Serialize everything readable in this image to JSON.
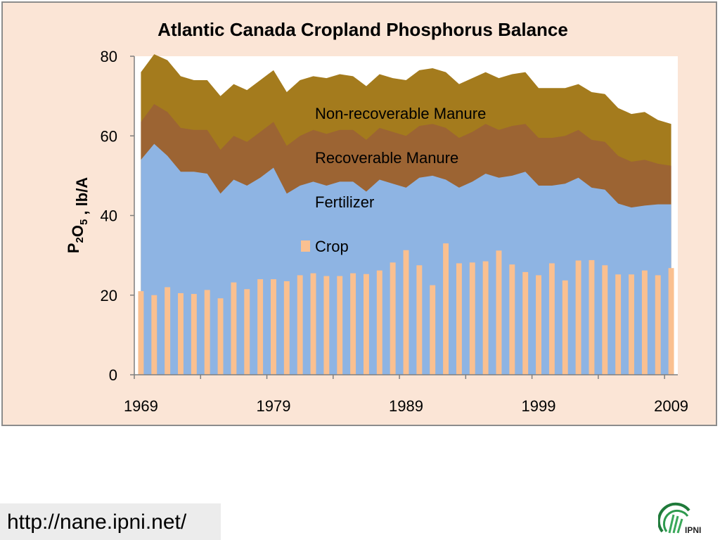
{
  "chart_data": {
    "type": "area",
    "title": "Atlantic Canada Cropland Phosphorus Balance",
    "ylabel": "P2O5 , lb/A",
    "ylim": [
      0,
      80
    ],
    "yticks": [
      0,
      20,
      40,
      60,
      80
    ],
    "xlim": [
      1969,
      2010
    ],
    "xticks": [
      1969,
      1979,
      1989,
      1999,
      2009
    ],
    "x": [
      1969,
      1970,
      1971,
      1972,
      1973,
      1974,
      1975,
      1976,
      1977,
      1978,
      1979,
      1980,
      1981,
      1982,
      1983,
      1984,
      1985,
      1986,
      1987,
      1988,
      1989,
      1990,
      1991,
      1992,
      1993,
      1994,
      1995,
      1996,
      1997,
      1998,
      1999,
      2000,
      2001,
      2002,
      2003,
      2004,
      2005,
      2006,
      2007,
      2008,
      2009
    ],
    "stacked_totals": [
      {
        "name": "Fertilizer",
        "color": "#8eb4e3",
        "values": [
          54,
          58,
          55,
          51,
          51,
          50.5,
          45.5,
          49,
          47.5,
          49.5,
          52,
          45.5,
          47.5,
          48.5,
          47.5,
          48.5,
          48.5,
          46,
          49,
          48,
          47,
          49.5,
          50,
          49,
          47,
          48.5,
          50.5,
          49.5,
          50,
          51,
          47.5,
          47.5,
          48,
          49.5,
          47,
          46.5,
          43,
          42,
          42.5,
          42.8,
          42.8
        ]
      },
      {
        "name": "Recoverable Manure",
        "color": "#9c6433",
        "values": [
          63.5,
          68,
          66,
          62,
          61.5,
          61.5,
          56.5,
          60,
          58.5,
          61,
          63.5,
          57.5,
          60,
          61.5,
          60.5,
          61.5,
          61.5,
          59,
          62,
          61,
          60,
          62.5,
          63,
          62,
          59.5,
          61,
          63,
          61.5,
          62.5,
          63,
          59.5,
          59.5,
          60,
          61.5,
          59,
          58.5,
          55,
          53.5,
          54,
          53,
          52.5
        ]
      },
      {
        "name": "Non-recoverable Manure",
        "color": "#a47b1d",
        "values": [
          76,
          80.5,
          79,
          75,
          74,
          74,
          70,
          73,
          71.5,
          74,
          76.5,
          71,
          74,
          75,
          74.5,
          75.5,
          75,
          72.5,
          75.5,
          74.5,
          74,
          76.5,
          77,
          76,
          73,
          74.5,
          76,
          74.5,
          75.5,
          76,
          72,
          72,
          72,
          73,
          71,
          70.5,
          67,
          65.5,
          66,
          64,
          63
        ]
      }
    ],
    "series": [
      {
        "name": "Crop",
        "type": "bar",
        "color": "#fac090",
        "values": [
          21,
          20,
          22,
          20.5,
          20.3,
          21.3,
          19.2,
          23.2,
          21.5,
          24,
          24,
          23.5,
          25,
          25.5,
          24.8,
          24.8,
          25.5,
          25.3,
          26.2,
          28.2,
          31.3,
          27.5,
          22.5,
          33,
          28,
          28.2,
          28.5,
          31.2,
          27.7,
          25.8,
          25,
          28,
          23.7,
          28.7,
          28.8,
          27.5,
          25.2,
          25.2,
          26.2,
          25,
          26.8
        ]
      }
    ],
    "legend": [
      "Non-recoverable Manure",
      "Recoverable Manure",
      "Fertilizer",
      "Crop"
    ],
    "grid": false
  },
  "footer": {
    "url": "http://nane.ipni.net/",
    "logo_text": "IPNI"
  }
}
